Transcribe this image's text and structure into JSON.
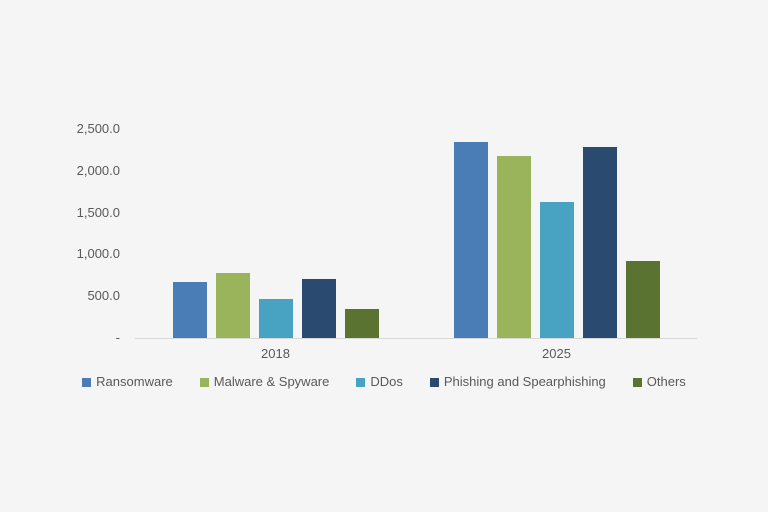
{
  "background_color": "#f5f5f5",
  "text_color": "#595959",
  "axis_line_color": "#d9d9d9",
  "chart_data": {
    "type": "bar",
    "title": "",
    "xlabel": "",
    "ylabel": "",
    "categories": [
      "2018",
      "2025"
    ],
    "series": [
      {
        "name": "Ransomware",
        "color": "#4a7cb5",
        "values": [
          670,
          2340
        ]
      },
      {
        "name": "Malware & Spyware",
        "color": "#9ab45b",
        "values": [
          775,
          2180
        ]
      },
      {
        "name": "DDos",
        "color": "#47a3c1",
        "values": [
          465,
          1630
        ]
      },
      {
        "name": "Phishing and Spearphishing",
        "color": "#2a4a70",
        "values": [
          700,
          2290
        ]
      },
      {
        "name": "Others",
        "color": "#5b7331",
        "values": [
          350,
          920
        ]
      }
    ],
    "ylim": [
      0,
      2500
    ],
    "y_ticks": [
      {
        "label": "2,500.0",
        "value": 2500
      },
      {
        "label": "2,000.0",
        "value": 2000
      },
      {
        "label": "1,500.0",
        "value": 1500
      },
      {
        "label": "1,000.0",
        "value": 1000
      },
      {
        "label": "500.0",
        "value": 500
      },
      {
        "label": "-",
        "value": 0
      }
    ],
    "grid": false,
    "legend_position": "bottom"
  }
}
